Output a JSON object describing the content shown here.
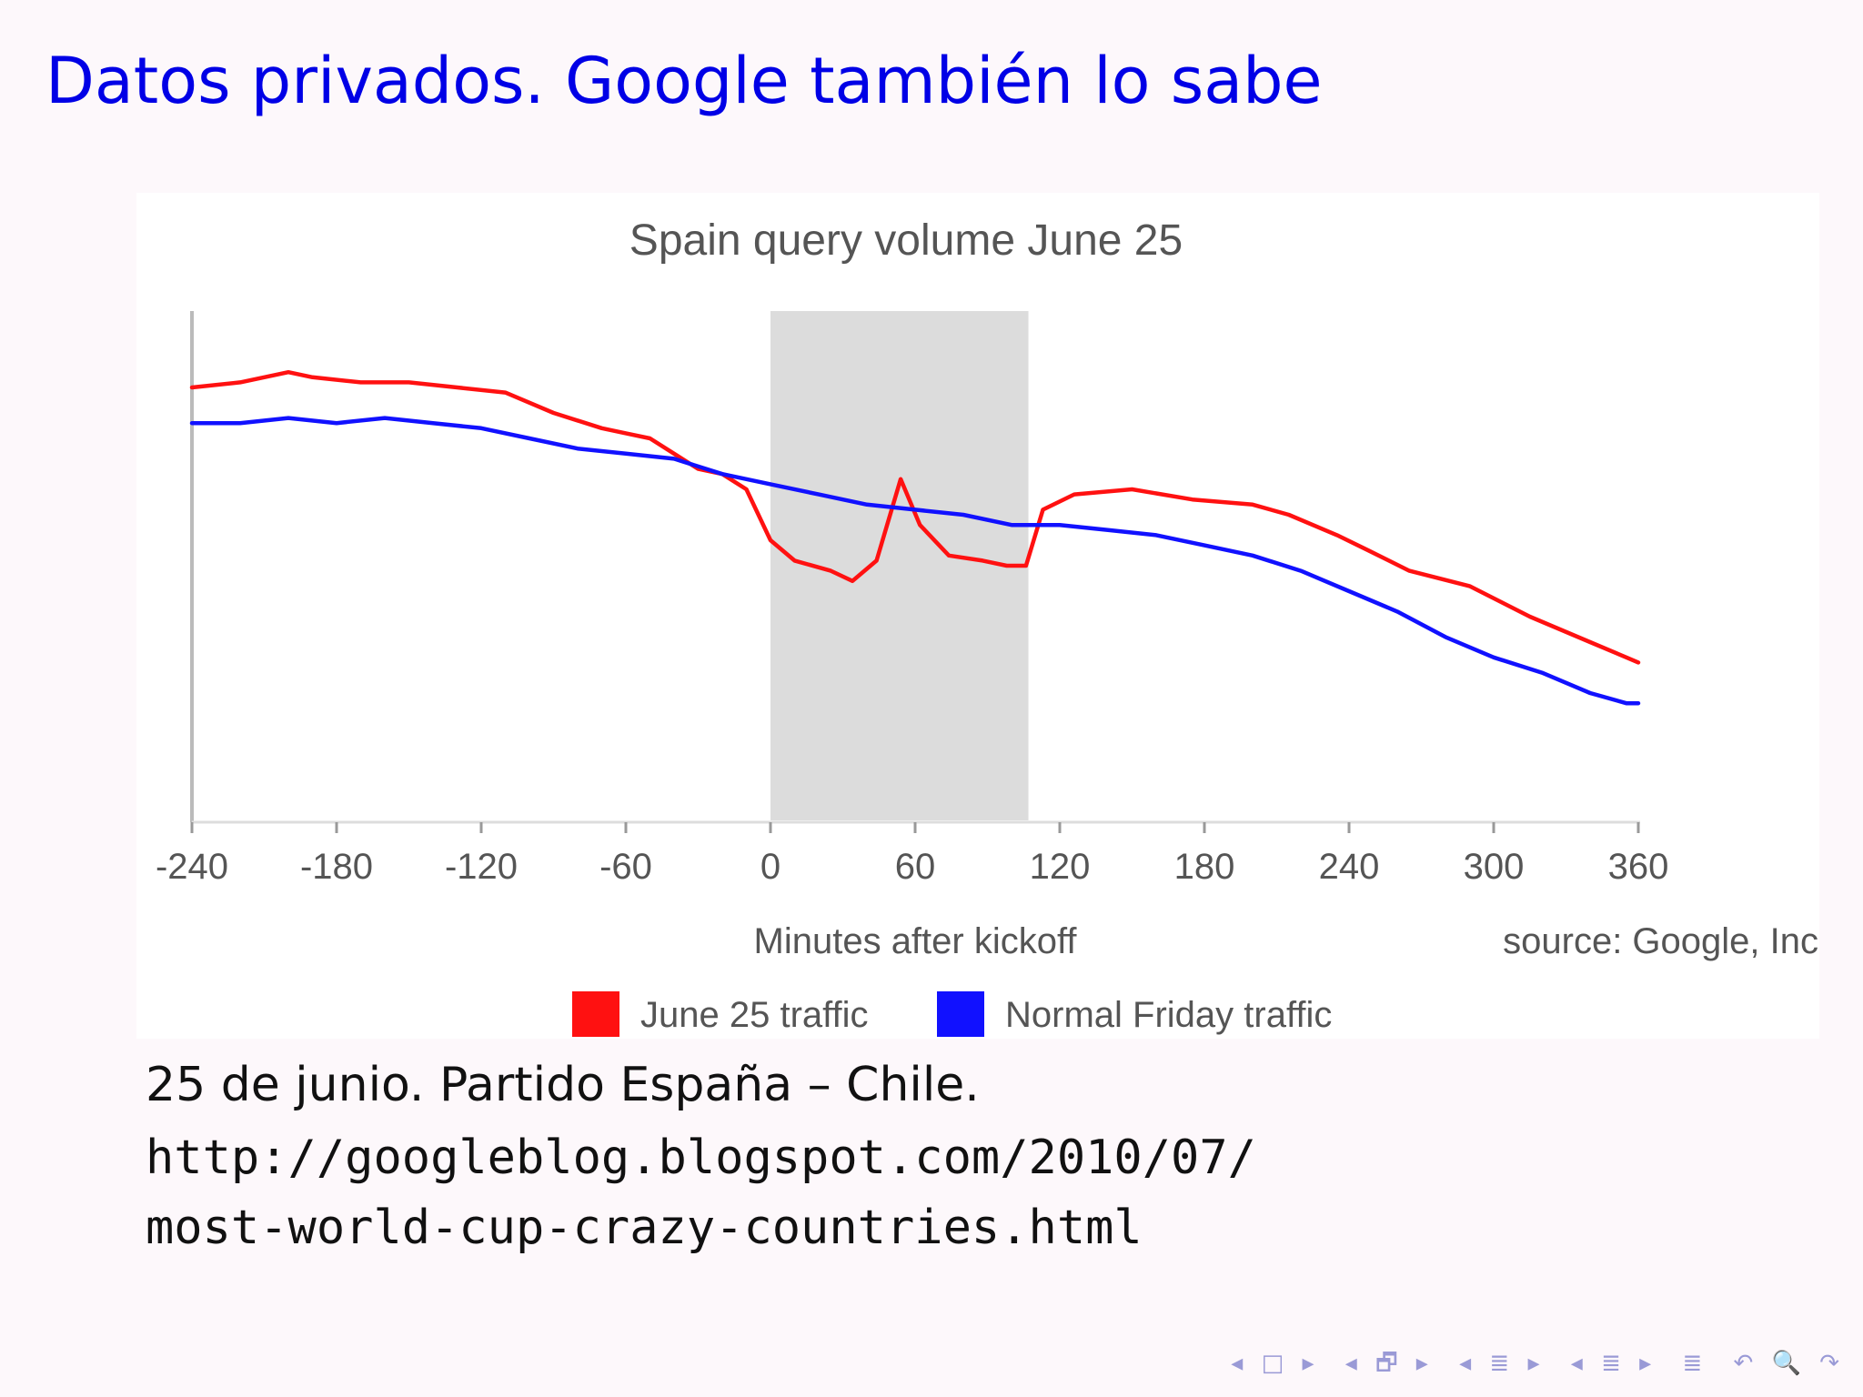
{
  "slide": {
    "title": "Datos privados. Google también lo sabe",
    "caption": "25 de junio. Partido España – Chile.",
    "url_line1": "http://googleblog.blogspot.com/2010/07/",
    "url_line2": "most-world-cup-crazy-countries.html"
  },
  "nav": {
    "frame_nav": "◂ □ ▸",
    "subsection_nav": "◂ 🗗 ▸",
    "section_nav": "◂ ≣ ▸",
    "subsub_nav": "◂ ≣ ▸",
    "align_icon": "≣",
    "search_icons": "↶ 🔍 ↷"
  },
  "colors": {
    "title": "#0000e6",
    "june25": "#ff1111",
    "normal": "#1111ff",
    "shade": "#dcdcdc"
  },
  "chart_data": {
    "type": "line",
    "title": "Spain query volume June 25",
    "xlabel": "Minutes after kickoff",
    "ylabel": "",
    "source_note": "source: Google, Inc",
    "xlim": [
      -240,
      360
    ],
    "ylim": [
      0,
      100
    ],
    "x_ticks": [
      -240,
      -180,
      -120,
      -60,
      0,
      60,
      120,
      180,
      240,
      300,
      360
    ],
    "x_tick_labels": [
      "-240",
      "-180",
      "-120",
      "-60",
      "0",
      "60",
      "120",
      "180",
      "240",
      "300",
      "360"
    ],
    "grid": false,
    "legend_position": "bottom-center",
    "shaded_region": [
      0,
      107
    ],
    "series": [
      {
        "name": "June 25 traffic",
        "color": "#ff1111",
        "points": [
          [
            -240,
            85
          ],
          [
            -220,
            86
          ],
          [
            -200,
            88
          ],
          [
            -190,
            87
          ],
          [
            -170,
            86
          ],
          [
            -150,
            86
          ],
          [
            -130,
            85
          ],
          [
            -110,
            84
          ],
          [
            -90,
            80
          ],
          [
            -70,
            77
          ],
          [
            -60,
            76
          ],
          [
            -50,
            75
          ],
          [
            -40,
            72
          ],
          [
            -30,
            69
          ],
          [
            -20,
            68
          ],
          [
            -10,
            65
          ],
          [
            0,
            55
          ],
          [
            10,
            51
          ],
          [
            25,
            49
          ],
          [
            34,
            47
          ],
          [
            44,
            51
          ],
          [
            54,
            67
          ],
          [
            62,
            58
          ],
          [
            74,
            52
          ],
          [
            88,
            51
          ],
          [
            98,
            50
          ],
          [
            106,
            50
          ],
          [
            113,
            61
          ],
          [
            126,
            64
          ],
          [
            150,
            65
          ],
          [
            175,
            63
          ],
          [
            200,
            62
          ],
          [
            215,
            60
          ],
          [
            235,
            56
          ],
          [
            248,
            53
          ],
          [
            265,
            49
          ],
          [
            290,
            46
          ],
          [
            315,
            40
          ],
          [
            340,
            35
          ],
          [
            355,
            32
          ],
          [
            360,
            31
          ]
        ]
      },
      {
        "name": "Normal Friday traffic",
        "color": "#1111ff",
        "points": [
          [
            -240,
            78
          ],
          [
            -220,
            78
          ],
          [
            -200,
            79
          ],
          [
            -180,
            78
          ],
          [
            -160,
            79
          ],
          [
            -140,
            78
          ],
          [
            -120,
            77
          ],
          [
            -100,
            75
          ],
          [
            -80,
            73
          ],
          [
            -60,
            72
          ],
          [
            -40,
            71
          ],
          [
            -20,
            68
          ],
          [
            0,
            66
          ],
          [
            20,
            64
          ],
          [
            40,
            62
          ],
          [
            60,
            61
          ],
          [
            80,
            60
          ],
          [
            100,
            58
          ],
          [
            120,
            58
          ],
          [
            140,
            57
          ],
          [
            160,
            56
          ],
          [
            180,
            54
          ],
          [
            200,
            52
          ],
          [
            220,
            49
          ],
          [
            240,
            45
          ],
          [
            260,
            41
          ],
          [
            280,
            36
          ],
          [
            300,
            32
          ],
          [
            320,
            29
          ],
          [
            340,
            25
          ],
          [
            355,
            23
          ],
          [
            360,
            23
          ]
        ]
      }
    ]
  }
}
